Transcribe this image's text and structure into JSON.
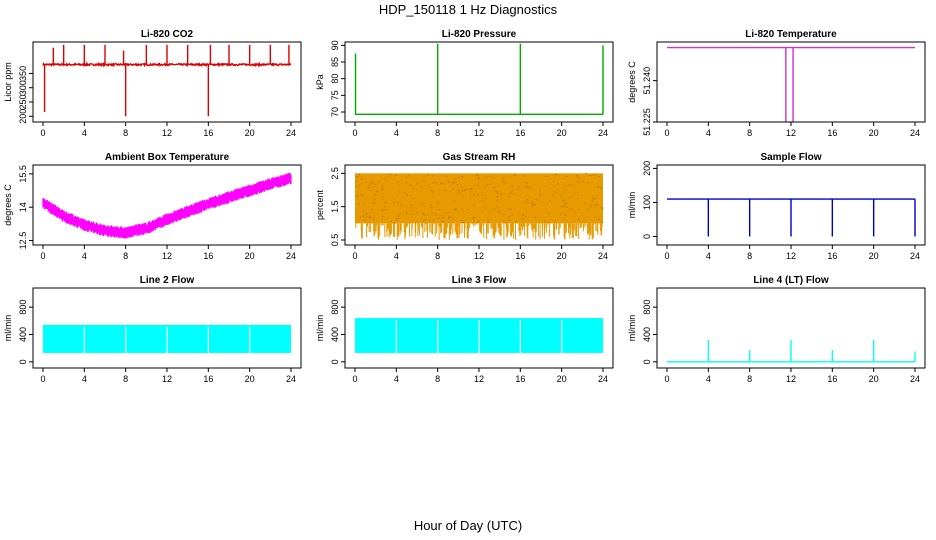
{
  "page": {
    "title": "HDP_150118  1 Hz Diagnostics",
    "xlabel": "Hour of Day (UTC)"
  },
  "chart_data": [
    {
      "id": "co2",
      "type": "line",
      "title": "Li-820 CO2",
      "ylabel": "Licor ppm",
      "color": "#dd0000",
      "xlim": [
        0,
        24
      ],
      "xticks": [
        0,
        4,
        8,
        12,
        16,
        20,
        24
      ],
      "ylim": [
        180,
        460
      ],
      "yticks": [
        200,
        250,
        300,
        350
      ],
      "baseline": 381,
      "noise": 6,
      "spikes": [
        {
          "x": 0.15,
          "y": 215
        },
        {
          "x": 1.0,
          "y": 440
        },
        {
          "x": 2.0,
          "y": 450
        },
        {
          "x": 4.0,
          "y": 450
        },
        {
          "x": 6.0,
          "y": 450
        },
        {
          "x": 7.8,
          "y": 430
        },
        {
          "x": 8.0,
          "y": 200
        },
        {
          "x": 10.0,
          "y": 450
        },
        {
          "x": 12.0,
          "y": 450
        },
        {
          "x": 14.0,
          "y": 450
        },
        {
          "x": 16.0,
          "y": 200
        },
        {
          "x": 16.2,
          "y": 450
        },
        {
          "x": 18.0,
          "y": 450
        },
        {
          "x": 20.0,
          "y": 450
        },
        {
          "x": 22.0,
          "y": 450
        },
        {
          "x": 23.8,
          "y": 450
        }
      ]
    },
    {
      "id": "pressure",
      "type": "line",
      "title": "Li-820 Pressure",
      "ylabel": "kPa",
      "color": "#00aa00",
      "xlim": [
        0,
        24
      ],
      "xticks": [
        0,
        4,
        8,
        12,
        16,
        20,
        24
      ],
      "ylim": [
        67,
        91
      ],
      "yticks": [
        70,
        75,
        80,
        85,
        90
      ],
      "baseline": 69.3,
      "spikes": [
        {
          "x": 0.05,
          "y": 87.5
        },
        {
          "x": 8.0,
          "y": 90.5
        },
        {
          "x": 16.0,
          "y": 90.5
        },
        {
          "x": 24.0,
          "y": 90
        }
      ]
    },
    {
      "id": "temperature",
      "type": "line",
      "title": "Li-820 Temperature",
      "ylabel": "degrees C",
      "color": "#cc33cc",
      "xlim": [
        0,
        24
      ],
      "xticks": [
        0,
        4,
        8,
        12,
        16,
        20,
        24
      ],
      "ylim": [
        51.225,
        51.254
      ],
      "yticks": [
        51.225,
        51.24
      ],
      "baseline": 51.252,
      "dips": [
        {
          "x": 11.5,
          "y": 51.225
        },
        {
          "x": 12.2,
          "y": 51.225
        }
      ]
    },
    {
      "id": "ambient",
      "type": "line",
      "title": "Ambient Box Temperature",
      "ylabel": "degrees C",
      "color": "#ff00ff",
      "xlim": [
        0,
        24
      ],
      "xticks": [
        0,
        4,
        8,
        12,
        16,
        20,
        24
      ],
      "ylim": [
        12.3,
        15.9
      ],
      "yticks": [
        12.5,
        14.0,
        15.5
      ],
      "trend": [
        {
          "x": 0,
          "y": 14.2
        },
        {
          "x": 2,
          "y": 13.6
        },
        {
          "x": 4,
          "y": 13.2
        },
        {
          "x": 6,
          "y": 12.95
        },
        {
          "x": 8,
          "y": 12.85
        },
        {
          "x": 10,
          "y": 13.05
        },
        {
          "x": 12,
          "y": 13.45
        },
        {
          "x": 14,
          "y": 13.8
        },
        {
          "x": 16,
          "y": 14.15
        },
        {
          "x": 18,
          "y": 14.45
        },
        {
          "x": 20,
          "y": 14.75
        },
        {
          "x": 22,
          "y": 15.05
        },
        {
          "x": 24,
          "y": 15.3
        }
      ],
      "band": 0.55
    },
    {
      "id": "rh",
      "type": "line",
      "title": "Gas Stream RH",
      "ylabel": "percent",
      "color": "#e69a00",
      "xlim": [
        0,
        24
      ],
      "xticks": [
        0,
        4,
        8,
        12,
        16,
        20,
        24
      ],
      "ylim": [
        0.35,
        2.75
      ],
      "yticks": [
        0.5,
        1.5,
        2.5
      ],
      "upper": 2.5,
      "lower": 1.0
    },
    {
      "id": "sample",
      "type": "line",
      "title": "Sample Flow",
      "ylabel": "ml/min",
      "color": "#0000cc",
      "xlim": [
        0,
        24
      ],
      "xticks": [
        0,
        4,
        8,
        12,
        16,
        20,
        24
      ],
      "ylim": [
        -25,
        210
      ],
      "yticks": [
        0,
        100,
        200
      ],
      "baseline": 110,
      "dips": [
        {
          "x": 4.0,
          "y": 0
        },
        {
          "x": 8.0,
          "y": 0
        },
        {
          "x": 12.0,
          "y": 0
        },
        {
          "x": 16.0,
          "y": 0
        },
        {
          "x": 20.0,
          "y": 0
        },
        {
          "x": 24.0,
          "y": 0
        }
      ]
    },
    {
      "id": "line2",
      "type": "area",
      "title": "Line 2 Flow",
      "ylabel": "ml/min",
      "color": "#00ffff",
      "xlim": [
        0,
        24
      ],
      "xticks": [
        0,
        4,
        8,
        12,
        16,
        20,
        24
      ],
      "ylim": [
        -90,
        1080
      ],
      "yticks": [
        0,
        400,
        800
      ],
      "upper": 540,
      "lower": 130,
      "gaps": [
        0,
        4,
        8,
        12,
        16,
        20,
        24
      ]
    },
    {
      "id": "line3",
      "type": "area",
      "title": "Line 3 Flow",
      "ylabel": "ml/min",
      "color": "#00ffff",
      "xlim": [
        0,
        24
      ],
      "xticks": [
        0,
        4,
        8,
        12,
        16,
        20,
        24
      ],
      "ylim": [
        -90,
        1080
      ],
      "yticks": [
        0,
        400,
        800
      ],
      "upper": 640,
      "lower": 130,
      "gaps": [
        0,
        4,
        8,
        12,
        16,
        20,
        24
      ]
    },
    {
      "id": "line4",
      "type": "line",
      "title": "Line 4 (LT) Flow",
      "ylabel": "ml/min",
      "color": "#00ffff",
      "xlim": [
        0,
        24
      ],
      "xticks": [
        0,
        4,
        8,
        12,
        16,
        20,
        24
      ],
      "ylim": [
        -90,
        1080
      ],
      "yticks": [
        0,
        400,
        800
      ],
      "baseline": 0,
      "spikes": [
        {
          "x": 4.0,
          "y": 320
        },
        {
          "x": 8.0,
          "y": 170
        },
        {
          "x": 12.0,
          "y": 320
        },
        {
          "x": 16.0,
          "y": 170
        },
        {
          "x": 20.0,
          "y": 320
        },
        {
          "x": 24.0,
          "y": 150
        }
      ]
    }
  ]
}
